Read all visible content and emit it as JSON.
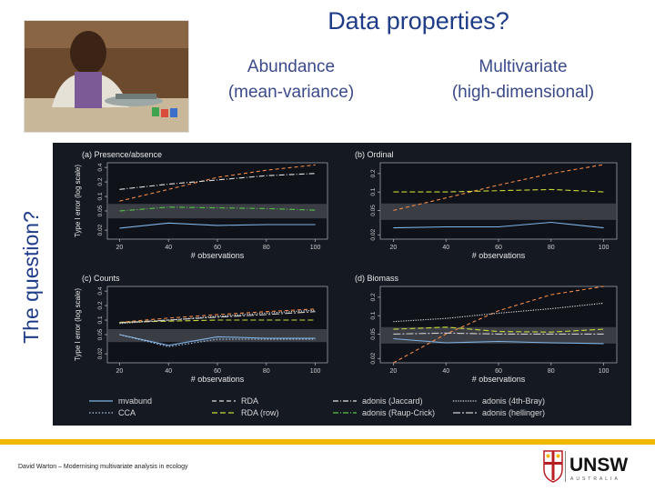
{
  "slide": {
    "title": "Data properties?",
    "subtitle_left_1": "Abundance",
    "subtitle_left_2": "(mean-variance)",
    "subtitle_right_1": "Multivariate",
    "subtitle_right_2": "(high-dimensional)",
    "side_label": "The question?",
    "footer_text": "David Warton – Modernising multivariate analysis in ecology",
    "logo_text": "UNSW",
    "logo_subtext": "AUSTRALIA",
    "colors": {
      "title": "#1f3c88",
      "footer_bar": "#f1b800",
      "figure_bg": "#151922"
    }
  },
  "chart_data": [
    {
      "type": "line",
      "title": "(a) Presence/absence",
      "xlabel": "# observations",
      "ylabel": "Type I error (log scale)",
      "x": [
        20,
        40,
        60,
        80,
        100
      ],
      "xticks": [
        20,
        40,
        60,
        80,
        100
      ],
      "yticks": [
        0.02,
        0.05,
        0.1,
        0.2,
        0.4
      ],
      "yscale": "log",
      "ylim": [
        0.013,
        0.5
      ],
      "band": [
        0.035,
        0.07
      ],
      "series": [
        {
          "name": "mvabund",
          "values": [
            0.022,
            0.028,
            0.025,
            0.026,
            0.026
          ]
        },
        {
          "name": "RDA",
          "values": [
            0.08,
            0.14,
            0.25,
            0.35,
            0.45
          ]
        },
        {
          "name": "adonis (Jaccard)",
          "values": [
            0.14,
            0.18,
            0.22,
            0.27,
            0.3
          ]
        },
        {
          "name": "adonis (Raup-Crick)",
          "values": [
            0.05,
            0.06,
            0.058,
            0.056,
            0.052
          ]
        }
      ]
    },
    {
      "type": "line",
      "title": "(b) Ordinal",
      "xlabel": "# observations",
      "ylabel": "",
      "x": [
        20,
        40,
        60,
        80,
        100
      ],
      "xticks": [
        20,
        40,
        60,
        80,
        100
      ],
      "yticks": [
        0.02,
        0.05,
        0.1,
        0.2
      ],
      "yscale": "log",
      "ylim": [
        0.017,
        0.3
      ],
      "band": [
        0.035,
        0.065
      ],
      "series": [
        {
          "name": "mvabund",
          "values": [
            0.026,
            0.027,
            0.027,
            0.032,
            0.026
          ]
        },
        {
          "name": "RDA",
          "values": [
            0.05,
            0.08,
            0.13,
            0.2,
            0.28
          ]
        },
        {
          "name": "RDA (row)",
          "values": [
            0.1,
            0.1,
            0.105,
            0.11,
            0.1
          ]
        }
      ]
    },
    {
      "type": "line",
      "title": "(c) Counts",
      "xlabel": "# observations",
      "ylabel": "Type I error (log scale)",
      "x": [
        20,
        40,
        60,
        80,
        100
      ],
      "xticks": [
        20,
        40,
        60,
        80,
        100
      ],
      "yticks": [
        0.02,
        0.05,
        0.1,
        0.2,
        0.4
      ],
      "yscale": "log",
      "ylim": [
        0.013,
        0.5
      ],
      "band": [
        0.035,
        0.065
      ],
      "series": [
        {
          "name": "mvabund",
          "values": [
            0.05,
            0.03,
            0.045,
            0.042,
            0.042
          ]
        },
        {
          "name": "CCA",
          "values": [
            0.05,
            0.028,
            0.04,
            0.04,
            0.04
          ]
        },
        {
          "name": "RDA",
          "values": [
            0.09,
            0.11,
            0.13,
            0.15,
            0.17
          ]
        },
        {
          "name": "RDA (row)",
          "values": [
            0.09,
            0.095,
            0.1,
            0.1,
            0.1
          ]
        },
        {
          "name": "adonis (4th-Bray)",
          "values": [
            0.085,
            0.1,
            0.12,
            0.14,
            0.16
          ]
        },
        {
          "name": "adonis (hellinger)",
          "values": [
            0.088,
            0.1,
            0.115,
            0.13,
            0.15
          ]
        }
      ]
    },
    {
      "type": "line",
      "title": "(d) Biomass",
      "xlabel": "# observations",
      "ylabel": "",
      "x": [
        20,
        40,
        60,
        80,
        100
      ],
      "xticks": [
        20,
        40,
        60,
        80,
        100
      ],
      "yticks": [
        0.02,
        0.05,
        0.1,
        0.2
      ],
      "yscale": "log",
      "ylim": [
        0.017,
        0.3
      ],
      "band": [
        0.035,
        0.065
      ],
      "series": [
        {
          "name": "mvabund",
          "values": [
            0.042,
            0.036,
            0.038,
            0.036,
            0.035
          ]
        },
        {
          "name": "RDA",
          "values": [
            0.012,
            0.05,
            0.12,
            0.22,
            0.3
          ]
        },
        {
          "name": "RDA (row)",
          "values": [
            0.06,
            0.065,
            0.055,
            0.054,
            0.06
          ]
        },
        {
          "name": "adonis (4th-Bray)",
          "values": [
            0.08,
            0.09,
            0.11,
            0.13,
            0.16
          ]
        },
        {
          "name": "adonis (hellinger)",
          "values": [
            0.05,
            0.052,
            0.05,
            0.05,
            0.05
          ]
        }
      ]
    }
  ],
  "legend": [
    {
      "name": "mvabund",
      "color": "#7fb3e6",
      "dash": ""
    },
    {
      "name": "CCA",
      "color": "#a9c6ea",
      "dash": "1.5,2"
    },
    {
      "name": "RDA",
      "color": "#d9d9d9",
      "dash": "5,3"
    },
    {
      "name": "RDA (row)",
      "color": "#c9d83a",
      "dash": "6,3"
    },
    {
      "name": "adonis (Jaccard)",
      "color": "#e0e0e0",
      "dash": "6,2,1,2"
    },
    {
      "name": "adonis (Raup-Crick)",
      "color": "#57c447",
      "dash": "6,2,1,2"
    },
    {
      "name": "adonis (4th-Bray)",
      "color": "#e6e6e6",
      "dash": "1.2,1.5"
    },
    {
      "name": "adonis (hellinger)",
      "color": "#cfcfcf",
      "dash": "8,2,2,2"
    }
  ],
  "series_styles": {
    "mvabund": {
      "color": "#7fb3e6",
      "dash": ""
    },
    "CCA": {
      "color": "#a9c6ea",
      "dash": "1.5,2"
    },
    "RDA": {
      "color": "#f08a4b",
      "dash": "4,3"
    },
    "RDA (row)": {
      "color": "#c9d83a",
      "dash": "6,3"
    },
    "adonis (Jaccard)": {
      "color": "#e0e0e0",
      "dash": "6,2,1,2"
    },
    "adonis (Raup-Crick)": {
      "color": "#57c447",
      "dash": "6,2,1,2"
    },
    "adonis (4th-Bray)": {
      "color": "#e6e6e6",
      "dash": "1.2,1.5"
    },
    "adonis (hellinger)": {
      "color": "#cfcfcf",
      "dash": "8,2,2,2"
    }
  }
}
